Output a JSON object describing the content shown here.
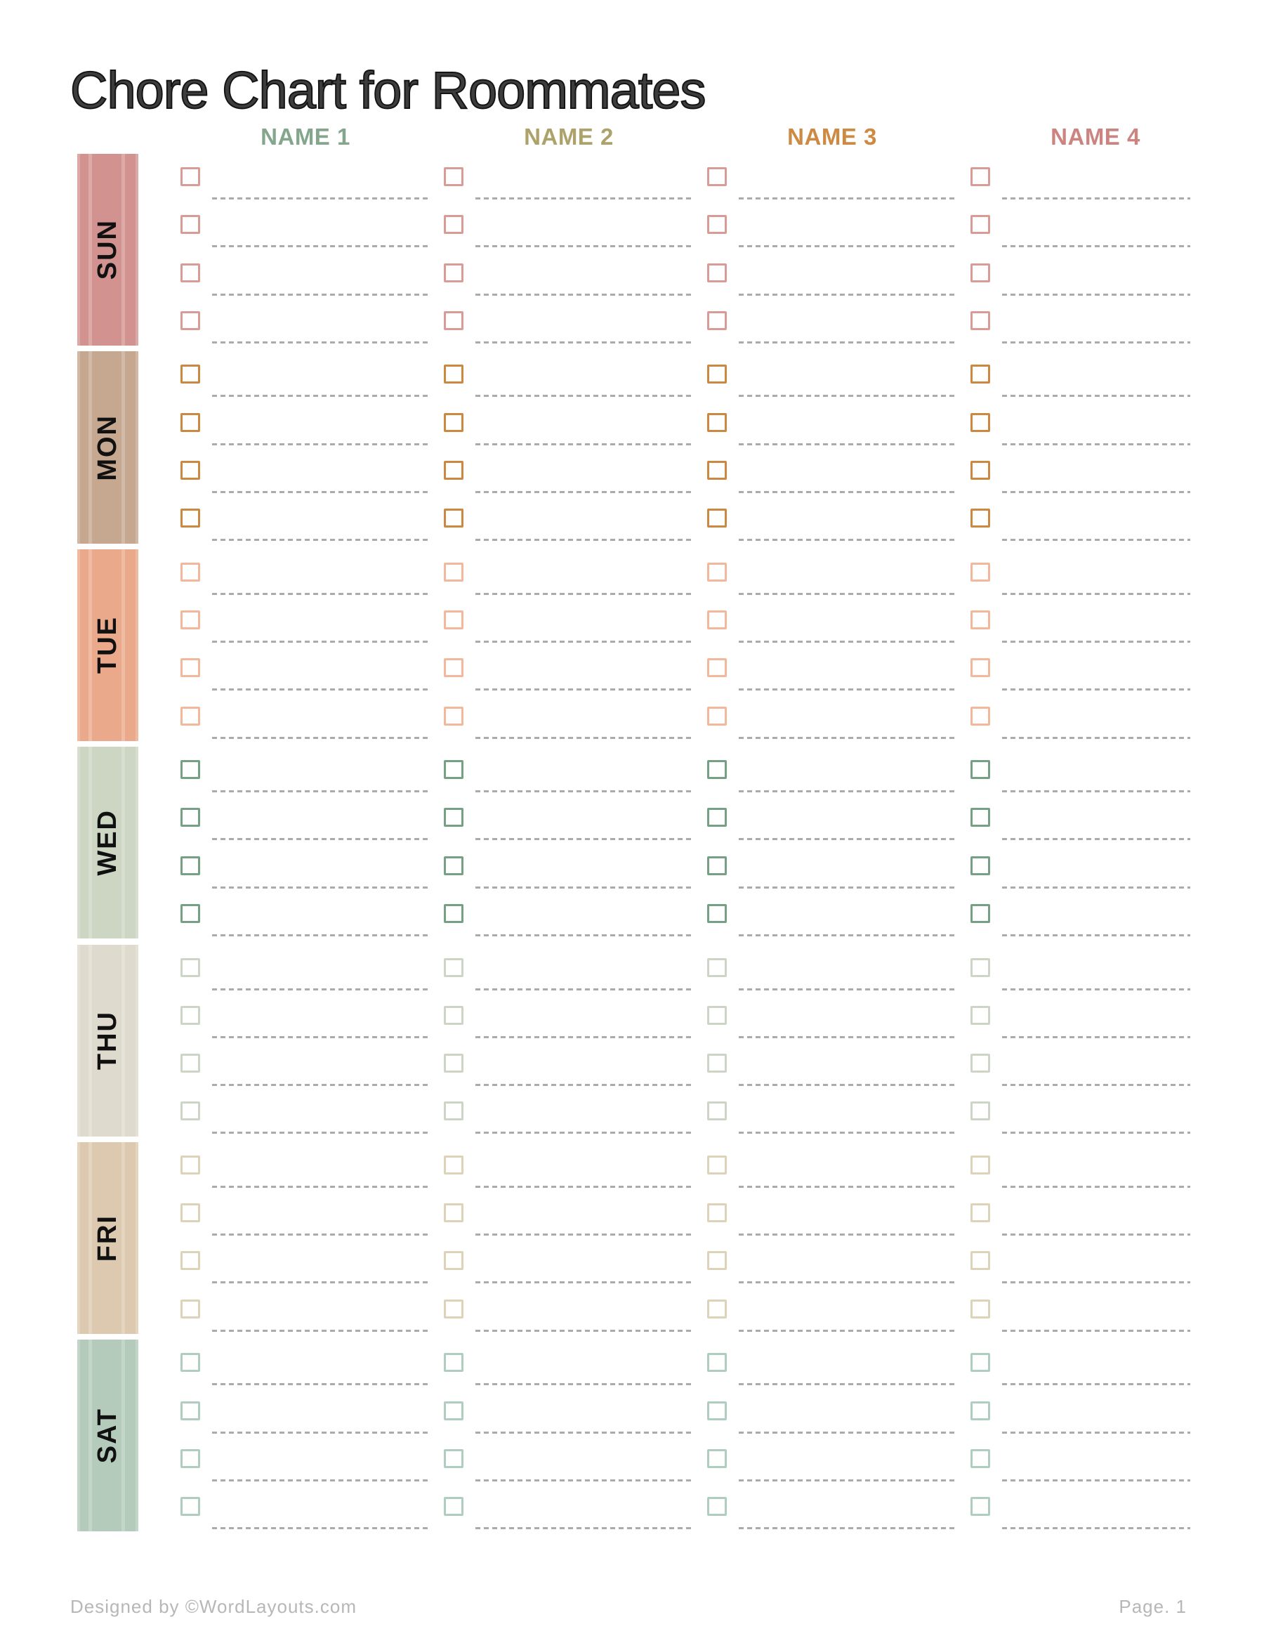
{
  "title": "Chore Chart for Roommates",
  "columns": [
    {
      "label": "NAME 1",
      "color": "#84a68c"
    },
    {
      "label": "NAME 2",
      "color": "#ada269"
    },
    {
      "label": "NAME 3",
      "color": "#cd8a43"
    },
    {
      "label": "NAME 4",
      "color": "#cc8480"
    }
  ],
  "days": [
    {
      "label": "SUN",
      "block_color": "#d29390",
      "checkbox_color": "#d99b95"
    },
    {
      "label": "MON",
      "block_color": "#c6a78f",
      "checkbox_color": "#cb8840"
    },
    {
      "label": "TUE",
      "block_color": "#eba98b",
      "checkbox_color": "#f3b89b"
    },
    {
      "label": "WED",
      "block_color": "#cdd6c3",
      "checkbox_color": "#75a083"
    },
    {
      "label": "THU",
      "block_color": "#dedacd",
      "checkbox_color": "#cdd6c6"
    },
    {
      "label": "FRI",
      "block_color": "#ddc9b0",
      "checkbox_color": "#ddd3b9"
    },
    {
      "label": "SAT",
      "block_color": "#b4cbbb",
      "checkbox_color": "#b0cec0"
    }
  ],
  "rows_per_day": 4,
  "checkbox_state": "unchecked",
  "task_line_value": "",
  "line_color": "#ababab",
  "footer": {
    "left": "Designed by ©WordLayouts.com",
    "right": "Page. 1"
  }
}
